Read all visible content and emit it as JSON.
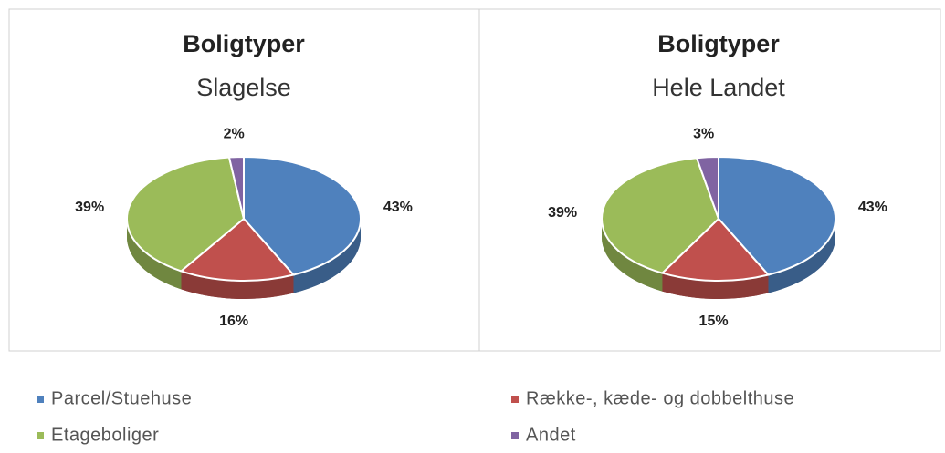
{
  "chart_data": [
    {
      "type": "pie",
      "title": "Boligtyper",
      "subtitle": "Slagelse",
      "categories": [
        "Parcel/Stuehuse",
        "Række-, kæde- og dobbelthuse",
        "Etageboliger",
        "Andet"
      ],
      "values": [
        43,
        16,
        39,
        2
      ],
      "value_labels": [
        "43%",
        "16%",
        "39%",
        "2%"
      ],
      "colors": [
        "#4f81bd",
        "#c0504d",
        "#9bbb59",
        "#8064a2"
      ]
    },
    {
      "type": "pie",
      "title": "Boligtyper",
      "subtitle": "Hele Landet",
      "categories": [
        "Parcel/Stuehuse",
        "Række-, kæde- og dobbelthuse",
        "Etageboliger",
        "Andet"
      ],
      "values": [
        43,
        15,
        39,
        3
      ],
      "value_labels": [
        "43%",
        "15%",
        "39%",
        "3%"
      ],
      "colors": [
        "#4f81bd",
        "#c0504d",
        "#9bbb59",
        "#8064a2"
      ]
    }
  ]
}
